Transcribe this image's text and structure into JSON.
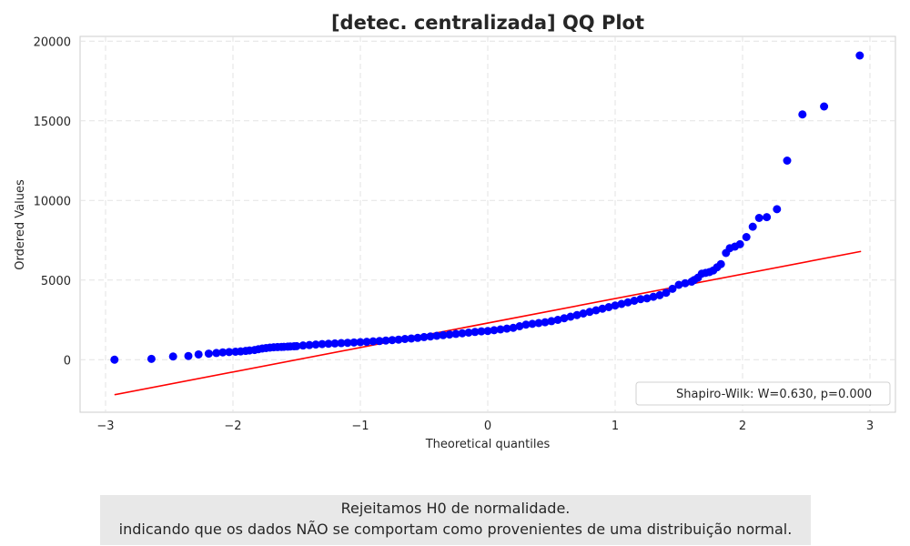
{
  "chart_data": {
    "type": "scatter",
    "title": "[detec. centralizada] QQ Plot",
    "xlabel": "Theoretical quantiles",
    "ylabel": "Ordered Values",
    "xlim": [
      -3.2,
      3.2
    ],
    "ylim": [
      -3300,
      20300
    ],
    "xticks": [
      -3,
      -2,
      -1,
      0,
      1,
      2,
      3
    ],
    "xtick_labels": [
      "−3",
      "−2",
      "−1",
      "0",
      "1",
      "2",
      "3"
    ],
    "yticks": [
      0,
      5000,
      10000,
      15000,
      20000
    ],
    "ytick_labels": [
      "0",
      "5000",
      "10000",
      "15000",
      "20000"
    ],
    "grid": true,
    "legend": {
      "position": "bottom-right",
      "entries": [
        "Shapiro-Wilk: W=0.630, p=0.000"
      ]
    },
    "fit_line": {
      "x": [
        -2.93,
        2.93
      ],
      "y": [
        -2200,
        6800
      ],
      "color": "#ff0000"
    },
    "point_color": "#0000ff",
    "series": [
      {
        "x": [
          -2.93,
          -2.64,
          -2.47,
          -2.35,
          -2.27,
          -2.19,
          -2.13,
          -2.08,
          -2.03,
          -1.98,
          -1.94,
          -1.9,
          -1.87,
          -1.83,
          -1.8,
          -1.77,
          -1.74,
          -1.71,
          -1.68,
          -1.65,
          -1.62,
          -1.6,
          -1.57,
          -1.55,
          -1.52,
          -1.5,
          -1.45,
          -1.4,
          -1.35,
          -1.3,
          -1.25,
          -1.2,
          -1.15,
          -1.1,
          -1.05,
          -1.0,
          -0.95,
          -0.9,
          -0.85,
          -0.8,
          -0.75,
          -0.7,
          -0.65,
          -0.6,
          -0.55,
          -0.5,
          -0.45,
          -0.4,
          -0.35,
          -0.3,
          -0.25,
          -0.2,
          -0.15,
          -0.1,
          -0.05,
          0.0,
          0.05,
          0.1,
          0.15,
          0.2,
          0.25,
          0.3,
          0.35,
          0.4,
          0.45,
          0.5,
          0.55,
          0.6,
          0.65,
          0.7,
          0.75,
          0.8,
          0.85,
          0.9,
          0.95,
          1.0,
          1.05,
          1.1,
          1.15,
          1.2,
          1.25,
          1.3,
          1.35,
          1.4,
          1.45,
          1.5,
          1.55,
          1.6,
          1.62,
          1.65,
          1.68,
          1.71,
          1.74,
          1.77,
          1.8,
          1.83,
          1.87,
          1.9,
          1.94,
          1.98,
          2.03,
          2.08,
          2.13,
          2.19,
          2.27,
          2.35,
          2.47,
          2.64,
          2.92
        ],
        "y": [
          0,
          50,
          200,
          230,
          330,
          380,
          420,
          460,
          480,
          500,
          520,
          550,
          580,
          610,
          660,
          700,
          730,
          760,
          780,
          790,
          800,
          810,
          820,
          830,
          840,
          850,
          890,
          920,
          950,
          980,
          1000,
          1020,
          1040,
          1060,
          1080,
          1100,
          1120,
          1150,
          1170,
          1200,
          1230,
          1260,
          1300,
          1330,
          1370,
          1420,
          1460,
          1500,
          1540,
          1580,
          1620,
          1660,
          1700,
          1740,
          1780,
          1800,
          1850,
          1900,
          1950,
          2000,
          2100,
          2200,
          2250,
          2300,
          2350,
          2420,
          2500,
          2600,
          2700,
          2800,
          2900,
          3000,
          3100,
          3200,
          3300,
          3400,
          3500,
          3600,
          3700,
          3800,
          3850,
          3950,
          4050,
          4200,
          4450,
          4700,
          4800,
          4900,
          5000,
          5150,
          5400,
          5450,
          5500,
          5600,
          5800,
          6000,
          6700,
          7000,
          7100,
          7250,
          7700,
          8350,
          8900,
          8950,
          9450,
          12500,
          15400,
          15900,
          19100
        ]
      }
    ]
  },
  "note": {
    "line1": "Rejeitamos H0 de normalidade.",
    "line2": "indicando que os dados NÃO se comportam como provenientes de uma distribuição normal."
  }
}
